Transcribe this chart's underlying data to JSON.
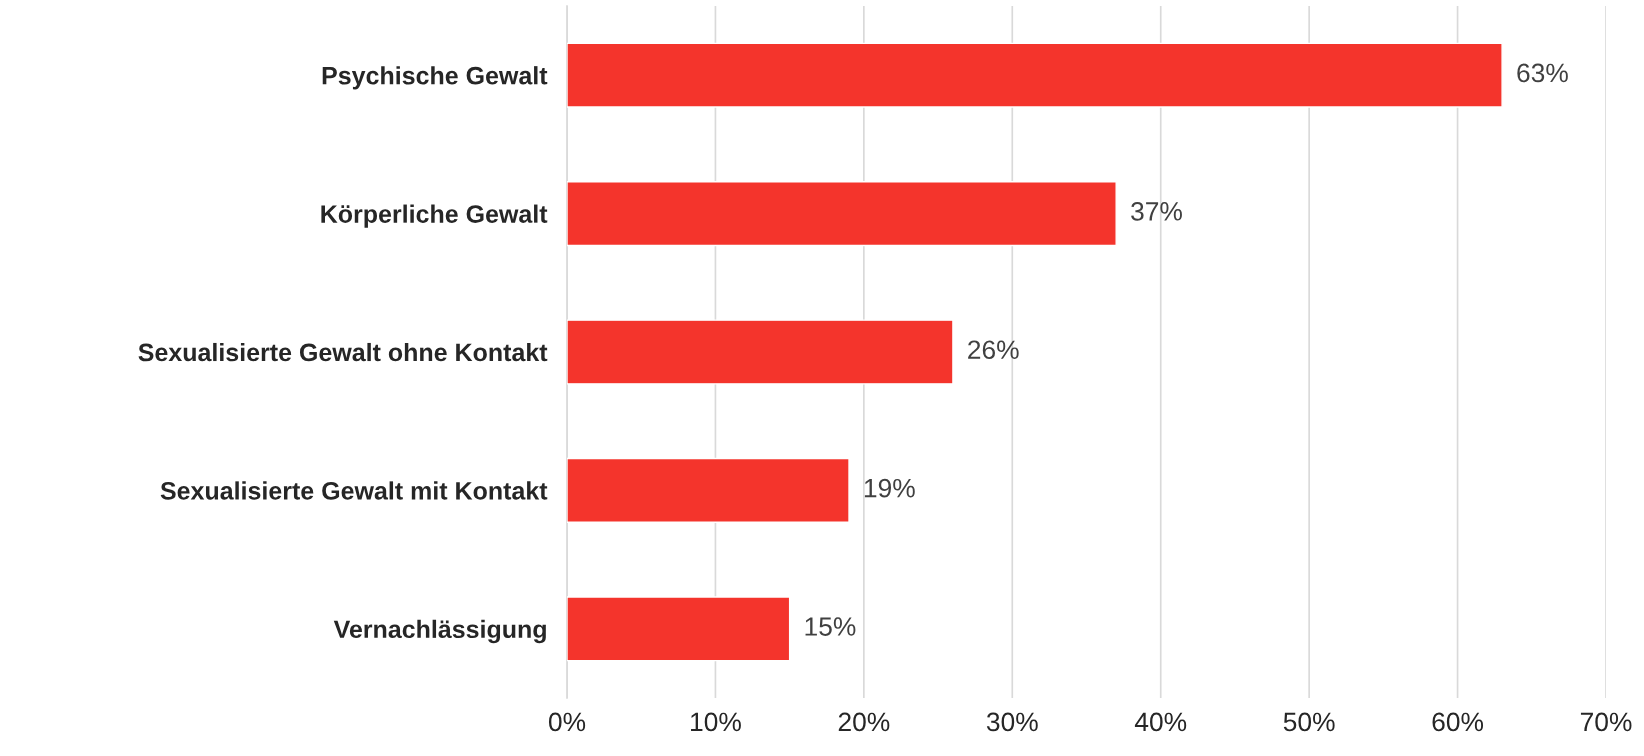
{
  "chart_data": {
    "type": "bar",
    "orientation": "horizontal",
    "categories": [
      "Psychische Gewalt",
      "Körperliche Gewalt",
      "Sexualisierte Gewalt ohne Kontakt",
      "Sexualisierte Gewalt mit Kontakt",
      "Vernachlässigung"
    ],
    "values": [
      63,
      37,
      26,
      19,
      15
    ],
    "value_labels": [
      "63%",
      "37%",
      "26%",
      "19%",
      "15%"
    ],
    "color": "#f4342c",
    "xlim": [
      0,
      70
    ],
    "xticks": [
      {
        "value": 0,
        "label": "0%"
      },
      {
        "value": 10,
        "label": "10%"
      },
      {
        "value": 20,
        "label": "20%"
      },
      {
        "value": 30,
        "label": "30%"
      },
      {
        "value": 40,
        "label": "40%"
      },
      {
        "value": 50,
        "label": "50%"
      },
      {
        "value": 60,
        "label": "60%"
      },
      {
        "value": 70,
        "label": "70%"
      }
    ],
    "grid": "x",
    "legend": false
  }
}
